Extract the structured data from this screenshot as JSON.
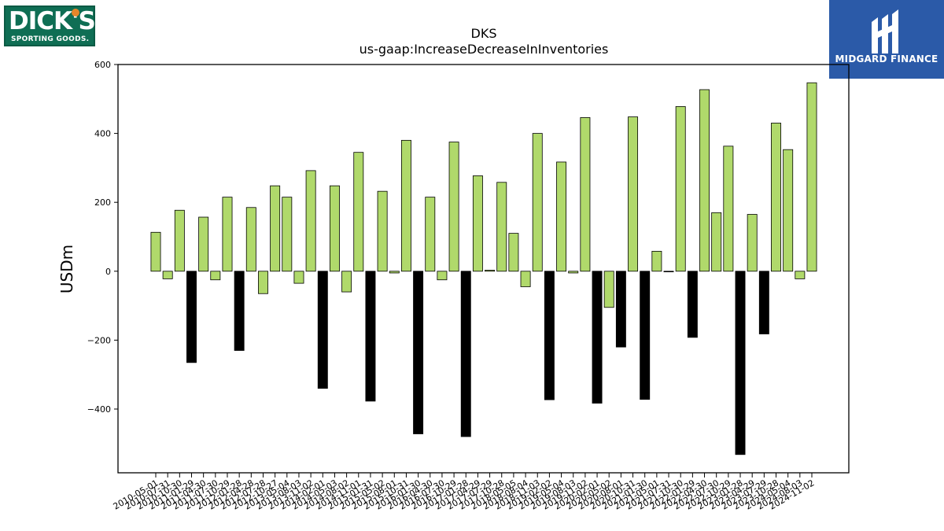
{
  "logos": {
    "left_brand": "DICK'S",
    "left_sub": "SPORTING GOODS.",
    "right_name": "MIDGARD FINANCE"
  },
  "colors": {
    "positive": "#b0d96b",
    "negative": "#000000",
    "edge": "#000000"
  },
  "chart_data": {
    "type": "bar",
    "title": "DKS",
    "subtitle": "us-gaap:IncreaseDecreaseInInventories",
    "ylabel": "USDm",
    "xlabel": "",
    "ylim": [
      -585,
      600
    ],
    "yticks": [
      -400,
      -200,
      0,
      200,
      400,
      600
    ],
    "grid": false,
    "categories": [
      "2010-05-01",
      "2010-07-31",
      "2010-10-30",
      "2011-01-29",
      "2011-04-30",
      "2011-07-30",
      "2011-10-29",
      "2012-01-28",
      "2012-04-28",
      "2012-07-28",
      "2012-10-27",
      "2013-05-04",
      "2013-08-03",
      "2013-11-02",
      "2014-02-01",
      "2014-05-03",
      "2014-08-02",
      "2014-11-01",
      "2015-01-31",
      "2015-05-02",
      "2015-08-01",
      "2015-10-31",
      "2016-01-30",
      "2016-04-30",
      "2016-07-30",
      "2016-10-29",
      "2017-01-28",
      "2017-04-29",
      "2017-07-29",
      "2017-10-28",
      "2018-05-05",
      "2018-08-04",
      "2018-11-03",
      "2019-02-02",
      "2019-05-04",
      "2019-08-03",
      "2019-11-02",
      "2020-02-01",
      "2020-05-02",
      "2020-08-01",
      "2020-10-31",
      "2021-01-30",
      "2021-05-01",
      "2021-07-31",
      "2021-10-30",
      "2022-01-29",
      "2022-04-30",
      "2022-07-30",
      "2022-10-29",
      "2023-01-28",
      "2023-04-29",
      "2023-07-29",
      "2023-10-28",
      "2024-05-04",
      "2024-08-03",
      "2024-11-02"
    ],
    "series": [
      {
        "values": [
          113,
          -22,
          177,
          -265,
          157,
          -25,
          215,
          -230,
          185,
          -65,
          248,
          215,
          -35,
          292,
          -340,
          248,
          -60,
          345,
          -377,
          232,
          -5,
          380,
          -472,
          215,
          -25,
          375,
          -480,
          277,
          3,
          258,
          110,
          -45,
          400,
          -373,
          317,
          -5,
          446,
          -383,
          -105,
          -220,
          448,
          -372,
          58,
          0,
          478,
          -192,
          527,
          170,
          363,
          -532,
          165,
          -182,
          430,
          353,
          -22,
          547
        ]
      }
    ]
  }
}
